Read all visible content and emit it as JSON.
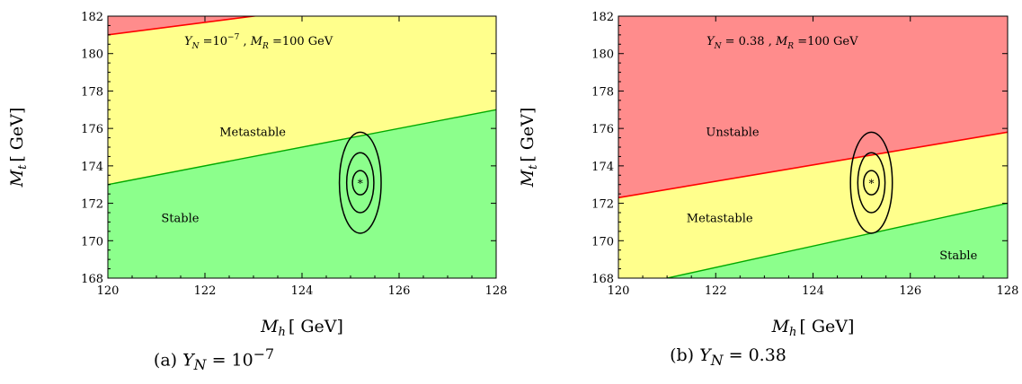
{
  "chart_data": [
    {
      "type": "area",
      "panel": "a",
      "annotation": {
        "Y_N_exponent": "−7",
        "text": "Y_N = 10^-7, M_R = 100 GeV",
        "M_R": "100",
        "unit": "GeV"
      },
      "xlabel": {
        "symbol": "M",
        "sub": "h",
        "unit": "[ GeV]"
      },
      "ylabel": {
        "symbol": "M",
        "sub": "t",
        "unit": "[ GeV]"
      },
      "xlim": [
        120,
        128
      ],
      "ylim": [
        168,
        182
      ],
      "x_ticks": [
        "120",
        "122",
        "124",
        "126",
        "128"
      ],
      "y_ticks": [
        "168",
        "170",
        "172",
        "174",
        "176",
        "178",
        "180",
        "182"
      ],
      "regions": [
        {
          "name": "Unstable",
          "color": "#ff8c8c",
          "label_visible": false
        },
        {
          "name": "Metastable",
          "color": "#ffff8c",
          "label_visible": true,
          "label_at": [
            122.3,
            175.6
          ]
        },
        {
          "name": "Stable",
          "color": "#8cff8c",
          "label_visible": true,
          "label_at": [
            121.1,
            171.0
          ]
        }
      ],
      "boundaries": [
        {
          "name": "unstable/metastable",
          "color": "#ff0000",
          "points": [
            [
              120,
              181.0
            ],
            [
              123,
              182.0
            ]
          ]
        },
        {
          "name": "metastable/stable",
          "color": "#00aa00",
          "points": [
            [
              120,
              173.0
            ],
            [
              128,
              177.0
            ]
          ]
        }
      ],
      "ellipses": {
        "center": [
          125.2,
          173.1
        ],
        "radii": [
          [
            0.16,
            0.65
          ],
          [
            0.28,
            1.6
          ],
          [
            0.43,
            2.7
          ]
        ],
        "marker": "*"
      },
      "caption": {
        "prefix": "(a)",
        "var": "Y",
        "sub": "N",
        "eq": "=",
        "base": "10",
        "exp": "−7"
      }
    },
    {
      "type": "area",
      "panel": "b",
      "annotation": {
        "Y_N": "0.38",
        "text": "Y_N = 0.38 , M_R = 100 GeV",
        "M_R": "100",
        "unit": "GeV"
      },
      "xlabel": {
        "symbol": "M",
        "sub": "h",
        "unit": "[ GeV]"
      },
      "ylabel": {
        "symbol": "M",
        "sub": "t",
        "unit": "[ GeV]"
      },
      "xlim": [
        120,
        128
      ],
      "ylim": [
        168,
        182
      ],
      "x_ticks": [
        "120",
        "122",
        "124",
        "126",
        "128"
      ],
      "y_ticks": [
        "168",
        "170",
        "172",
        "174",
        "176",
        "178",
        "180",
        "182"
      ],
      "regions": [
        {
          "name": "Unstable",
          "color": "#ff8c8c",
          "label_visible": true,
          "label_at": [
            121.8,
            175.6
          ]
        },
        {
          "name": "Metastable",
          "color": "#ffff8c",
          "label_visible": true,
          "label_at": [
            121.4,
            171.0
          ]
        },
        {
          "name": "Stable",
          "color": "#8cff8c",
          "label_visible": true,
          "label_at": [
            126.6,
            169.0
          ]
        }
      ],
      "boundaries": [
        {
          "name": "unstable/metastable",
          "color": "#ff0000",
          "points": [
            [
              120,
              172.3
            ],
            [
              128,
              175.8
            ]
          ]
        },
        {
          "name": "metastable/stable",
          "color": "#00aa00",
          "points": [
            [
              121,
              168.0
            ],
            [
              128,
              172.0
            ]
          ]
        }
      ],
      "ellipses": {
        "center": [
          125.2,
          173.1
        ],
        "radii": [
          [
            0.16,
            0.65
          ],
          [
            0.28,
            1.6
          ],
          [
            0.43,
            2.7
          ]
        ],
        "marker": "*"
      },
      "caption": {
        "prefix": "(b)",
        "var": "Y",
        "sub": "N",
        "eq": "=",
        "value": "0.38"
      }
    }
  ]
}
